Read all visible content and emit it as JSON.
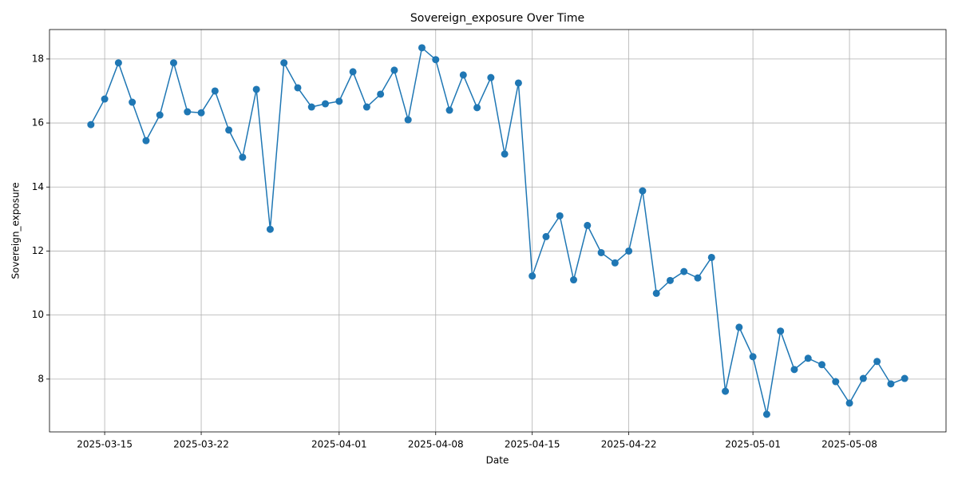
{
  "chart_data": {
    "type": "line",
    "title": "Sovereign_exposure Over Time",
    "x_label": "Date",
    "y_label": "Sovereign_exposure",
    "x": [
      "2025-03-14",
      "2025-03-15",
      "2025-03-16",
      "2025-03-17",
      "2025-03-18",
      "2025-03-19",
      "2025-03-20",
      "2025-03-21",
      "2025-03-22",
      "2025-03-23",
      "2025-03-24",
      "2025-03-25",
      "2025-03-26",
      "2025-03-27",
      "2025-03-28",
      "2025-03-29",
      "2025-03-30",
      "2025-03-31",
      "2025-04-01",
      "2025-04-02",
      "2025-04-03",
      "2025-04-04",
      "2025-04-05",
      "2025-04-06",
      "2025-04-07",
      "2025-04-08",
      "2025-04-09",
      "2025-04-10",
      "2025-04-11",
      "2025-04-12",
      "2025-04-13",
      "2025-04-14",
      "2025-04-15",
      "2025-04-16",
      "2025-04-17",
      "2025-04-18",
      "2025-04-19",
      "2025-04-20",
      "2025-04-21",
      "2025-04-22",
      "2025-04-23",
      "2025-04-24",
      "2025-04-25",
      "2025-04-26",
      "2025-04-27",
      "2025-04-28",
      "2025-04-29",
      "2025-04-30",
      "2025-05-01",
      "2025-05-02",
      "2025-05-03",
      "2025-05-04",
      "2025-05-05",
      "2025-05-06",
      "2025-05-07",
      "2025-05-08",
      "2025-05-09",
      "2025-05-10",
      "2025-05-11",
      "2025-05-12"
    ],
    "values": [
      15.95,
      16.75,
      17.88,
      16.65,
      15.45,
      16.25,
      17.88,
      16.35,
      16.32,
      17.0,
      15.78,
      14.93,
      17.05,
      12.68,
      17.88,
      17.1,
      16.5,
      16.6,
      16.68,
      17.6,
      16.5,
      16.9,
      17.65,
      16.1,
      18.35,
      17.98,
      16.4,
      17.5,
      16.48,
      17.42,
      15.03,
      17.25,
      11.22,
      12.45,
      13.1,
      11.1,
      12.8,
      11.95,
      11.63,
      12.0,
      13.88,
      10.68,
      11.08,
      11.36,
      11.16,
      11.8,
      7.62,
      9.62,
      8.7,
      6.9,
      9.5,
      8.3,
      8.65,
      8.45,
      7.92,
      7.25,
      8.02,
      8.55,
      7.85,
      8.02
    ],
    "color": "#1f77b4",
    "xlim": [
      "2025-03-11",
      "2025-05-15"
    ],
    "xticks": [
      "2025-03-15",
      "2025-03-22",
      "2025-04-01",
      "2025-04-08",
      "2025-04-15",
      "2025-04-22",
      "2025-05-01",
      "2025-05-08"
    ],
    "ylim": [
      6.35,
      18.92
    ],
    "yticks": [
      8,
      10,
      12,
      14,
      16,
      18
    ],
    "grid": true
  }
}
